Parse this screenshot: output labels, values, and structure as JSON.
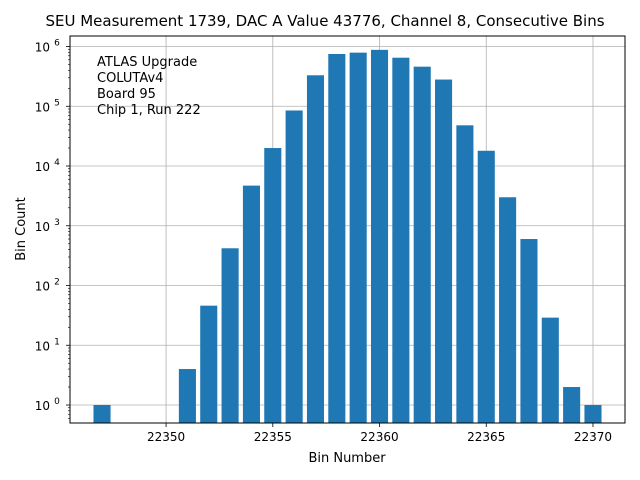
{
  "chart_data": {
    "type": "bar",
    "title": "SEU Measurement 1739, DAC A Value 43776, Channel 8, Consecutive Bins",
    "xlabel": "Bin Number",
    "ylabel": "Bin Count",
    "yscale": "log",
    "ylim": [
      0.5,
      1500000
    ],
    "xlim": [
      22345.5,
      22371.5
    ],
    "grid": true,
    "bar_color": "#1f77b4",
    "x": [
      22347,
      22351,
      22352,
      22353,
      22354,
      22355,
      22356,
      22357,
      22358,
      22359,
      22360,
      22361,
      22362,
      22363,
      22364,
      22365,
      22366,
      22367,
      22368,
      22369,
      22370
    ],
    "values": [
      1,
      4,
      46,
      420,
      4700,
      20000,
      85000,
      330000,
      750000,
      790000,
      880000,
      650000,
      460000,
      280000,
      48000,
      18000,
      3000,
      600,
      29,
      2,
      1
    ],
    "x_ticks": [
      "22350",
      "22355",
      "22360",
      "22365",
      "22370"
    ],
    "y_ticks": [
      {
        "base": "10",
        "exp": "0"
      },
      {
        "base": "10",
        "exp": "1"
      },
      {
        "base": "10",
        "exp": "2"
      },
      {
        "base": "10",
        "exp": "3"
      },
      {
        "base": "10",
        "exp": "4"
      },
      {
        "base": "10",
        "exp": "5"
      },
      {
        "base": "10",
        "exp": "6"
      }
    ],
    "annotation": [
      "ATLAS Upgrade",
      "COLUTAv4",
      " Board 95",
      "Chip 1, Run 222"
    ]
  }
}
